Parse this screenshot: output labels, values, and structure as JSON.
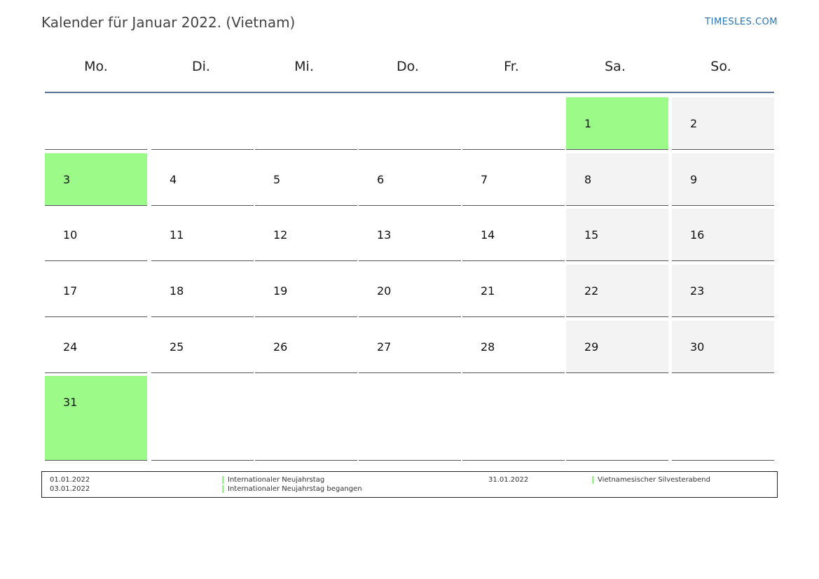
{
  "header": {
    "title": "Kalender für Januar 2022. (Vietnam)",
    "brand": "TIMESLES.COM"
  },
  "weekdays": [
    "Mo.",
    "Di.",
    "Mi.",
    "Do.",
    "Fr.",
    "Sa.",
    "So."
  ],
  "colors": {
    "holiday": "#9cfb88",
    "weekend": "#f3f3f3",
    "header_rule": "#5a7393"
  },
  "weeks": [
    [
      "",
      "",
      "",
      "",
      "",
      "1",
      "2"
    ],
    [
      "3",
      "4",
      "5",
      "6",
      "7",
      "8",
      "9"
    ],
    [
      "10",
      "11",
      "12",
      "13",
      "14",
      "15",
      "16"
    ],
    [
      "17",
      "18",
      "19",
      "20",
      "21",
      "22",
      "23"
    ],
    [
      "24",
      "25",
      "26",
      "27",
      "28",
      "29",
      "30"
    ],
    [
      "31",
      "",
      "",
      "",
      "",
      "",
      ""
    ]
  ],
  "holiday_days": [
    "1",
    "3",
    "31"
  ],
  "legend": [
    {
      "date": "01.01.2022",
      "name": "Internationaler Neujahrstag"
    },
    {
      "date": "03.01.2022",
      "name": "Internationaler Neujahrstag begangen"
    },
    {
      "date": "31.01.2022",
      "name": "Vietnamesischer Silvesterabend"
    }
  ]
}
